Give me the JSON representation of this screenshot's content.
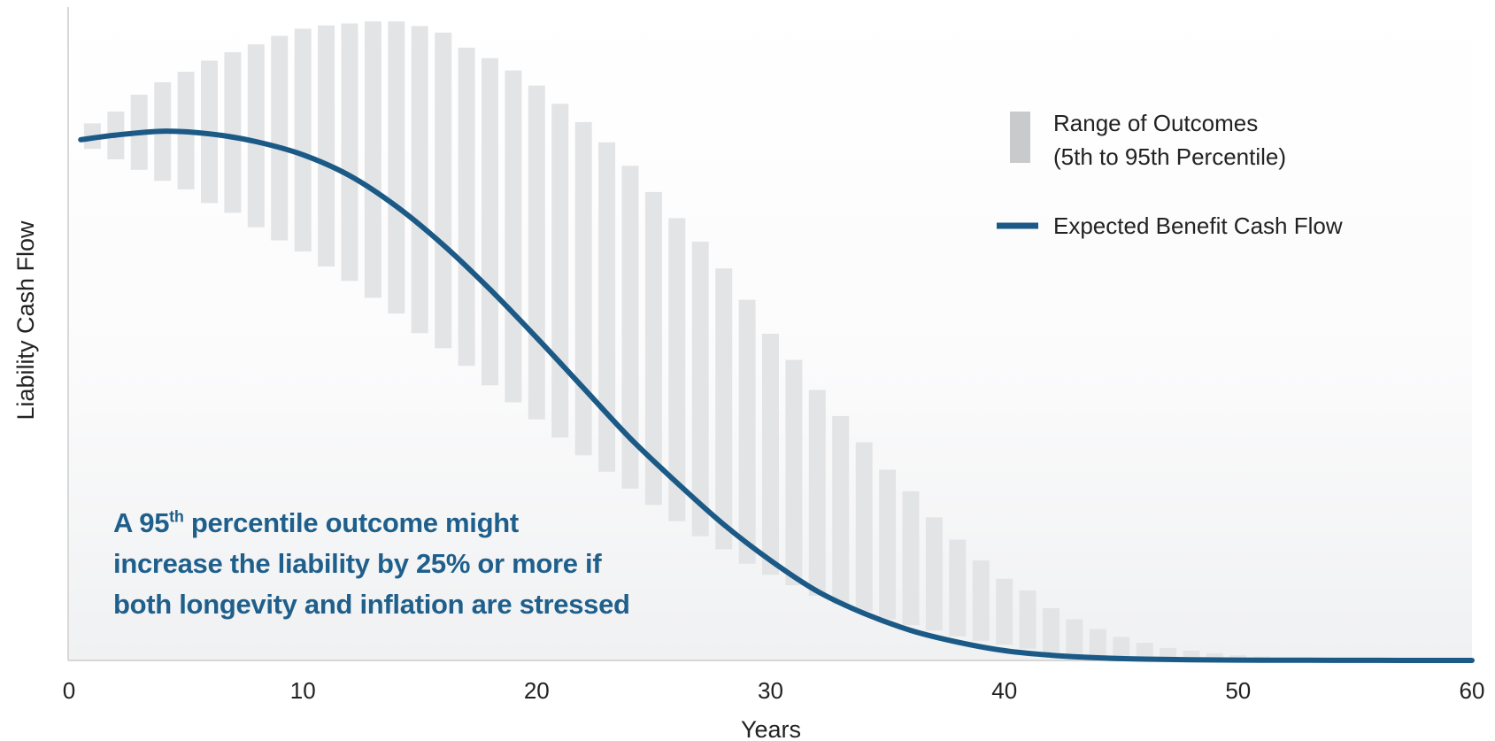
{
  "chart_data": {
    "type": "bar",
    "xlabel": "Years",
    "ylabel": "Liability Cash Flow",
    "xlim": [
      0,
      60
    ],
    "ylim": [
      0,
      100
    ],
    "x_ticks": [
      0,
      10,
      20,
      30,
      40,
      50,
      60
    ],
    "grid": false,
    "legend_position": "top-right",
    "colors": {
      "range_bar": "#e3e4e6",
      "legend_swatch": "#c9cacc",
      "line": "#1b5a86",
      "axis": "#cccccc"
    },
    "legend": {
      "range_label_line1": "Range of Outcomes",
      "range_label_line2": "(5th to 95th Percentile)",
      "line_label": "Expected Benefit Cash Flow"
    },
    "series": [
      {
        "name": "Range of Outcomes (5th to 95th Percentile)",
        "type": "range_bar",
        "x": [
          1,
          2,
          3,
          4,
          5,
          6,
          7,
          8,
          9,
          10,
          11,
          12,
          13,
          14,
          15,
          16,
          17,
          18,
          19,
          20,
          21,
          22,
          23,
          24,
          25,
          26,
          27,
          28,
          29,
          30,
          31,
          32,
          33,
          34,
          35,
          36,
          37,
          38,
          39,
          40,
          41,
          42,
          43,
          44,
          45,
          46,
          47,
          48,
          49,
          50,
          51,
          52,
          53,
          54,
          55,
          56,
          57,
          58,
          59
        ],
        "low": [
          78.3,
          76.7,
          75.1,
          73.4,
          72.1,
          70.0,
          68.5,
          66.3,
          64.3,
          62.6,
          60.3,
          58.1,
          55.5,
          53.1,
          50.1,
          47.8,
          45.1,
          42.1,
          39.5,
          36.9,
          34.1,
          31.4,
          28.9,
          26.3,
          23.8,
          21.3,
          19.0,
          17.0,
          14.8,
          13.1,
          11.5,
          9.9,
          8.6,
          7.5,
          6.3,
          5.4,
          4.6,
          3.7,
          3.0,
          2.4,
          1.8,
          1.3,
          0.9,
          0.7,
          0.5,
          0.4,
          0.2,
          0.2,
          0.1,
          0.1,
          0.1,
          0.1,
          0.1,
          0.1,
          0.1,
          0.1,
          0.1,
          0.1,
          0.1
        ],
        "high": [
          82.2,
          84.0,
          86.6,
          88.5,
          90.1,
          91.8,
          93.1,
          94.3,
          95.6,
          96.7,
          97.2,
          97.5,
          97.8,
          97.8,
          97.1,
          96.1,
          93.8,
          92.2,
          90.3,
          88.0,
          85.2,
          82.4,
          79.3,
          75.7,
          71.7,
          67.7,
          64.1,
          60.0,
          55.2,
          50.0,
          46.0,
          41.4,
          37.4,
          33.4,
          29.2,
          25.9,
          21.9,
          18.5,
          15.3,
          12.5,
          10.7,
          8.0,
          6.3,
          4.8,
          3.6,
          2.7,
          1.9,
          1.5,
          1.1,
          0.8,
          0.6,
          0.4,
          0.4,
          0.3,
          0.3,
          0.2,
          0.2,
          0.2,
          0.2
        ]
      },
      {
        "name": "Expected Benefit Cash Flow",
        "type": "line",
        "x": [
          0.5,
          2,
          4,
          6,
          8,
          10,
          12,
          14,
          16,
          18,
          20,
          22,
          24,
          26,
          28,
          30,
          32,
          34,
          36,
          38,
          40,
          42,
          44,
          46,
          48,
          50,
          52,
          54,
          56,
          58,
          60
        ],
        "y": [
          79.7,
          80.4,
          81.0,
          80.6,
          79.4,
          77.4,
          74.2,
          69.5,
          63.6,
          56.8,
          49.4,
          41.7,
          34.0,
          27.2,
          20.8,
          15.3,
          10.6,
          7.2,
          4.6,
          2.8,
          1.5,
          0.8,
          0.4,
          0.2,
          0.1,
          0.05,
          0.03,
          0.02,
          0.01,
          0.0,
          0.0
        ]
      }
    ]
  },
  "annotation": {
    "line1_prefix": "A 95",
    "line1_sup": "th",
    "line1_suffix": " percentile outcome might",
    "line2": "increase the liability by 25% or more if",
    "line3": "both longevity and inflation are stressed"
  }
}
